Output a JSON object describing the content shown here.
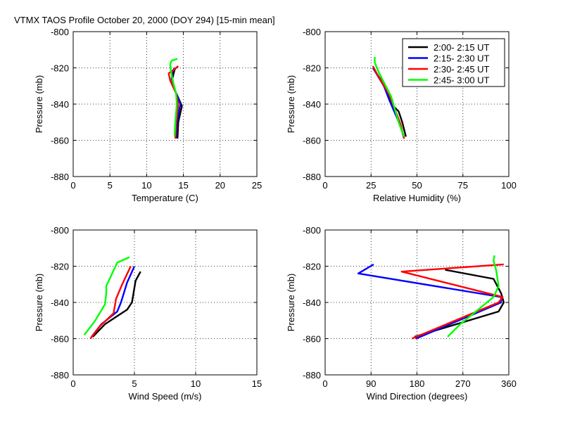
{
  "figure_title": "VTMX TAOS Profile   October 20, 2000 (DOY 294) [15-min mean]",
  "chart_data": [
    {
      "type": "line",
      "id": "temperature",
      "xlabel": "Temperature (C)",
      "ylabel": "Pressure (mb)",
      "xlim": [
        0,
        25
      ],
      "ylim": [
        -880,
        -800
      ],
      "xticks": [
        0,
        5,
        10,
        15,
        20,
        25
      ],
      "yticks": [
        -800,
        -820,
        -840,
        -860,
        -880
      ],
      "grid": true,
      "series": [
        {
          "name": "2:00- 2:15 UT",
          "color": "#000000",
          "points": [
            [
              14.2,
              -859
            ],
            [
              14.3,
              -850
            ],
            [
              14.8,
              -841
            ],
            [
              13.8,
              -832
            ],
            [
              13.5,
              -826
            ],
            [
              13.8,
              -821
            ],
            [
              14.0,
              -820
            ]
          ]
        },
        {
          "name": "2:15- 2:30 UT",
          "color": "#0000ff",
          "points": [
            [
              14.0,
              -859
            ],
            [
              14.1,
              -850
            ],
            [
              14.6,
              -840
            ],
            [
              13.9,
              -833
            ],
            [
              13.4,
              -826
            ],
            [
              13.5,
              -822
            ],
            [
              13.8,
              -820
            ]
          ]
        },
        {
          "name": "2:30- 2:45 UT",
          "color": "#ff0000",
          "points": [
            [
              13.9,
              -859
            ],
            [
              14.0,
              -850
            ],
            [
              14.3,
              -840
            ],
            [
              14.0,
              -834
            ],
            [
              13.2,
              -827
            ],
            [
              13.0,
              -823
            ],
            [
              13.7,
              -821
            ],
            [
              14.3,
              -819
            ]
          ]
        },
        {
          "name": "2:45- 3:00 UT",
          "color": "#00ff00",
          "points": [
            [
              13.8,
              -858
            ],
            [
              13.9,
              -850
            ],
            [
              14.1,
              -840
            ],
            [
              14.0,
              -834
            ],
            [
              13.6,
              -828
            ],
            [
              13.3,
              -822
            ],
            [
              13.2,
              -818
            ],
            [
              13.4,
              -816
            ],
            [
              14.2,
              -815
            ]
          ]
        }
      ]
    },
    {
      "type": "line",
      "id": "humidity",
      "xlabel": "Relative Humidity (%)",
      "ylabel": "Pressure (mb)",
      "xlim": [
        0,
        100
      ],
      "ylim": [
        -880,
        -800
      ],
      "xticks": [
        0,
        25,
        50,
        75,
        100
      ],
      "yticks": [
        -800,
        -820,
        -840,
        -860,
        -880
      ],
      "grid": true,
      "legend_position": "top-right",
      "series": [
        {
          "name": "2:00- 2:15 UT",
          "color": "#000000",
          "points": [
            [
              44,
              -858
            ],
            [
              42,
              -850
            ],
            [
              40,
              -844
            ],
            [
              36,
              -840
            ],
            [
              33,
              -832
            ],
            [
              30,
              -826
            ],
            [
              26,
              -820
            ]
          ]
        },
        {
          "name": "2:15- 2:30 UT",
          "color": "#0000ff",
          "points": [
            [
              43,
              -859
            ],
            [
              41,
              -852
            ],
            [
              38,
              -845
            ],
            [
              35,
              -838
            ],
            [
              32,
              -830
            ],
            [
              29,
              -825
            ],
            [
              26,
              -820
            ]
          ]
        },
        {
          "name": "2:30- 2:45 UT",
          "color": "#ff0000",
          "points": [
            [
              43,
              -859
            ],
            [
              41,
              -851
            ],
            [
              38,
              -843
            ],
            [
              35,
              -835
            ],
            [
              31,
              -828
            ],
            [
              28,
              -823
            ],
            [
              26,
              -819
            ]
          ]
        },
        {
          "name": "2:45- 3:00 UT",
          "color": "#00ff00",
          "points": [
            [
              43,
              -858
            ],
            [
              40,
              -850
            ],
            [
              38,
              -843
            ],
            [
              36,
              -836
            ],
            [
              32,
              -828
            ],
            [
              29,
              -822
            ],
            [
              27,
              -817
            ],
            [
              27,
              -814
            ]
          ]
        }
      ]
    },
    {
      "type": "line",
      "id": "wind_speed",
      "xlabel": "Wind Speed (m/s)",
      "ylabel": "Pressure (mb)",
      "xlim": [
        0,
        15
      ],
      "ylim": [
        -880,
        -800
      ],
      "xticks": [
        0,
        5,
        10,
        15
      ],
      "yticks": [
        -800,
        -820,
        -840,
        -860,
        -880
      ],
      "grid": true,
      "series": [
        {
          "name": "2:00- 2:15 UT",
          "color": "#000000",
          "points": [
            [
              1.6,
              -859
            ],
            [
              2.6,
              -852
            ],
            [
              4.4,
              -844
            ],
            [
              4.8,
              -840
            ],
            [
              5.1,
              -828
            ],
            [
              5.5,
              -823
            ]
          ]
        },
        {
          "name": "2:15- 2:30 UT",
          "color": "#0000ff",
          "points": [
            [
              1.5,
              -859
            ],
            [
              2.3,
              -852
            ],
            [
              3.6,
              -845
            ],
            [
              3.9,
              -840
            ],
            [
              4.4,
              -829
            ],
            [
              5.0,
              -820
            ]
          ]
        },
        {
          "name": "2:30- 2:45 UT",
          "color": "#ff0000",
          "points": [
            [
              1.4,
              -860
            ],
            [
              2.2,
              -853
            ],
            [
              3.3,
              -846
            ],
            [
              3.5,
              -838
            ],
            [
              4.0,
              -830
            ],
            [
              4.7,
              -820
            ]
          ]
        },
        {
          "name": "2:45- 3:00 UT",
          "color": "#00ff00",
          "points": [
            [
              0.9,
              -858
            ],
            [
              1.8,
              -850
            ],
            [
              2.6,
              -841
            ],
            [
              2.7,
              -835
            ],
            [
              2.7,
              -831
            ],
            [
              3.6,
              -818
            ],
            [
              4.6,
              -815
            ]
          ]
        }
      ]
    },
    {
      "type": "line",
      "id": "wind_direction",
      "xlabel": "Wind Direction (degrees)",
      "ylabel": "Pressure (mb)",
      "xlim": [
        0,
        360
      ],
      "ylim": [
        -880,
        -800
      ],
      "xticks": [
        0,
        90,
        180,
        270,
        360
      ],
      "yticks": [
        -800,
        -820,
        -840,
        -860,
        -880
      ],
      "grid": true,
      "series": [
        {
          "name": "2:00- 2:15 UT",
          "color": "#000000",
          "points": [
            [
              175,
              -859
            ],
            [
              340,
              -845
            ],
            [
              350,
              -840
            ],
            [
              345,
              -835
            ],
            [
              330,
              -827
            ],
            [
              235,
              -822
            ]
          ]
        },
        {
          "name": "2:15- 2:30 UT",
          "color": "#0000ff",
          "points": [
            [
              178,
              -860
            ],
            [
              345,
              -840
            ],
            [
              345,
              -837
            ],
            [
              65,
              -824
            ],
            [
              95,
              -819
            ]
          ]
        },
        {
          "name": "2:30- 2:45 UT",
          "color": "#ff0000",
          "points": [
            [
              170,
              -860
            ],
            [
              340,
              -840
            ],
            [
              348,
              -837
            ],
            [
              150,
              -823
            ],
            [
              350,
              -819
            ]
          ]
        },
        {
          "name": "2:45- 3:00 UT",
          "color": "#00ff00",
          "points": [
            [
              240,
              -859
            ],
            [
              265,
              -852
            ],
            [
              330,
              -837
            ],
            [
              340,
              -831
            ],
            [
              335,
              -822
            ],
            [
              330,
              -817
            ],
            [
              332,
              -814
            ]
          ]
        }
      ]
    }
  ]
}
